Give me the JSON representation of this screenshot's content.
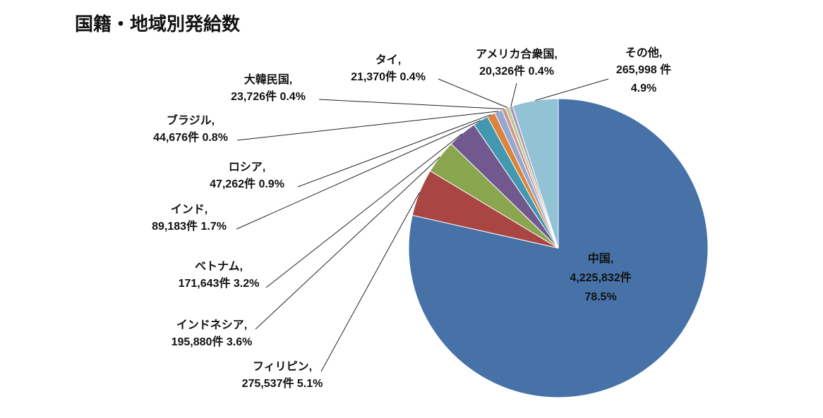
{
  "chart_data": {
    "type": "pie",
    "title": "国籍・地域別発給数",
    "slices": [
      {
        "name": "中国",
        "value": 4225832,
        "value_label": "4,225,832件",
        "percent_label": "78.5%",
        "color": "#4672A8"
      },
      {
        "name": "フィリピン",
        "value": 275537,
        "value_label": "275,537件",
        "percent_label": "5.1%",
        "color": "#A94643"
      },
      {
        "name": "インドネシア",
        "value": 195880,
        "value_label": "195,880件",
        "percent_label": "3.6%",
        "color": "#89A54E"
      },
      {
        "name": "ベトナム",
        "value": 171643,
        "value_label": "171,643件",
        "percent_label": "3.2%",
        "color": "#71588F"
      },
      {
        "name": "インド",
        "value": 89183,
        "value_label": "89,183件",
        "percent_label": "1.7%",
        "color": "#4198AF"
      },
      {
        "name": "ロシア",
        "value": 47262,
        "value_label": "47,262件",
        "percent_label": "0.9%",
        "color": "#DB843D"
      },
      {
        "name": "ブラジル",
        "value": 44676,
        "value_label": "44,676件",
        "percent_label": "0.8%",
        "color": "#93A9CF"
      },
      {
        "name": "大韓民国",
        "value": 23726,
        "value_label": "23,726件",
        "percent_label": "0.4%",
        "color": "#D19392"
      },
      {
        "name": "タイ",
        "value": 21370,
        "value_label": "21,370件",
        "percent_label": "0.4%",
        "color": "#B9CD96"
      },
      {
        "name": "アメリカ合衆国",
        "value": 20326,
        "value_label": "20,326件",
        "percent_label": "0.4%",
        "color": "#A99BBD"
      },
      {
        "name": "その他",
        "value": 265998,
        "value_label": "265,998 件",
        "percent_label": "4.9%",
        "color": "#92C3D5"
      }
    ]
  }
}
